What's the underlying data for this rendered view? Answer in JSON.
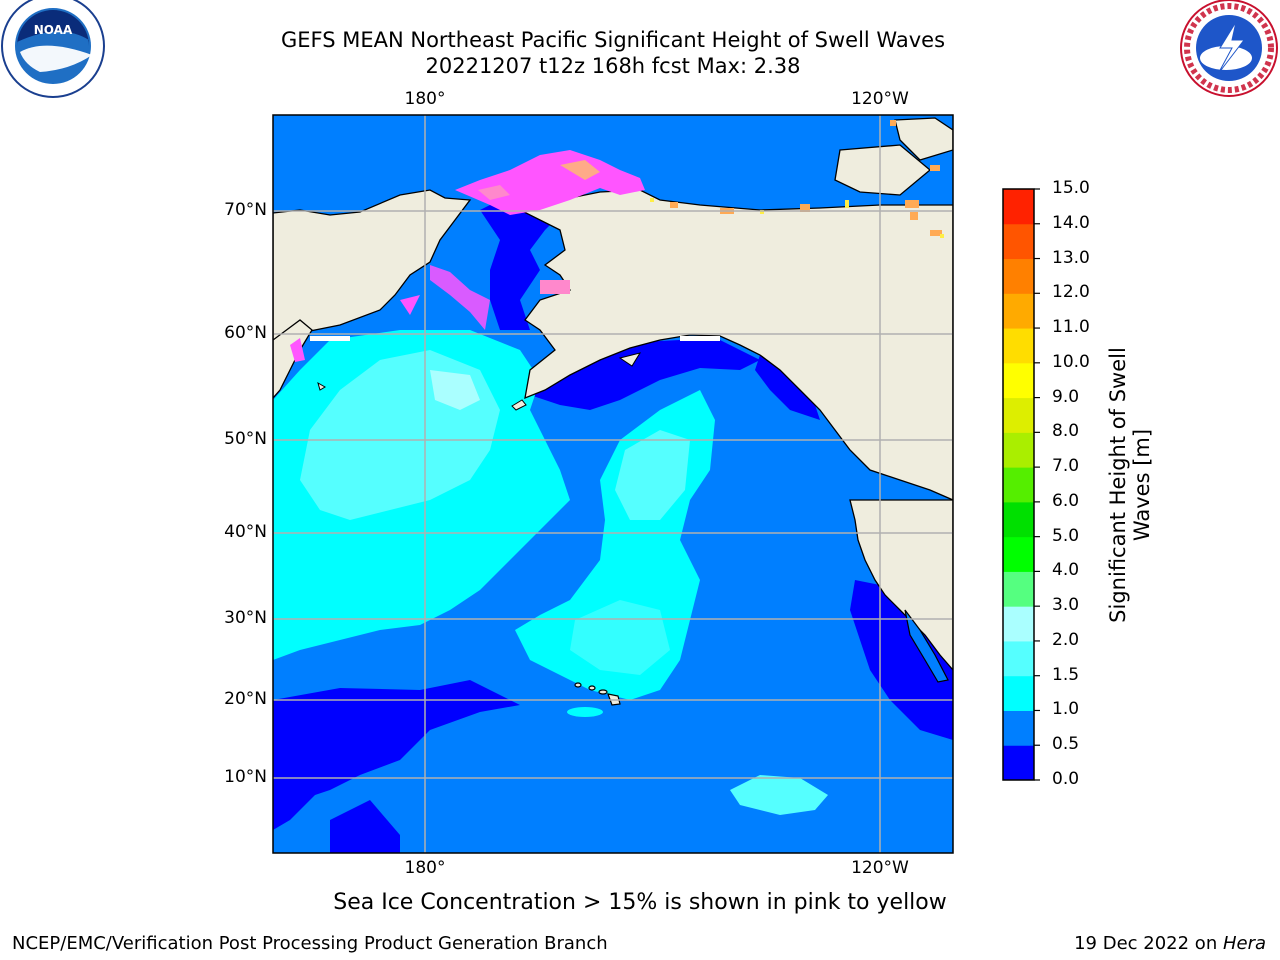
{
  "header": {
    "title": "GEFS MEAN Northeast Pacific Significant Height of Swell Waves",
    "subtitle": "20221207 t12z 168h fcst   Max: 2.38"
  },
  "logos": {
    "left_text": "NOAA",
    "right_text": "NATIONAL WEATHER SERVICE"
  },
  "map": {
    "lon_labels_top": [
      "180°",
      "120°W"
    ],
    "lon_labels_bottom": [
      "180°",
      "120°W"
    ],
    "lat_labels": [
      "70°N",
      "60°N",
      "50°N",
      "40°N",
      "30°N",
      "20°N",
      "10°N"
    ],
    "ocean_colors": {
      "dark_blue": "#0000ff",
      "mid_blue": "#007fff",
      "cyan": "#00ffff",
      "light_cyan": "#55ffff",
      "pale_cyan": "#aaffff",
      "land": "#efedde",
      "ice_magenta": "#ff55ff"
    }
  },
  "colorbar": {
    "title": "Significant Height of Swell Waves [m]",
    "ticks": [
      "0.0",
      "0.5",
      "1.0",
      "1.5",
      "2.0",
      "3.0",
      "4.0",
      "5.0",
      "6.0",
      "7.0",
      "8.0",
      "9.0",
      "10.0",
      "11.0",
      "12.0",
      "13.0",
      "14.0",
      "15.0"
    ],
    "colors": [
      "#0000ff",
      "#007fff",
      "#00ffff",
      "#55ffff",
      "#aaffff",
      "#55ff80",
      "#00ff00",
      "#00e000",
      "#55ee00",
      "#aaee00",
      "#ddee00",
      "#ffff00",
      "#ffdd00",
      "#ffaa00",
      "#ff8000",
      "#ff5500",
      "#ff2200"
    ]
  },
  "note": "Sea Ice Concentration > 15% is shown in pink to yellow",
  "footer": {
    "left": "NCEP/EMC/Verification Post Processing Product Generation Branch",
    "right_date": "19 Dec 2022 on ",
    "right_host": "Hera"
  }
}
